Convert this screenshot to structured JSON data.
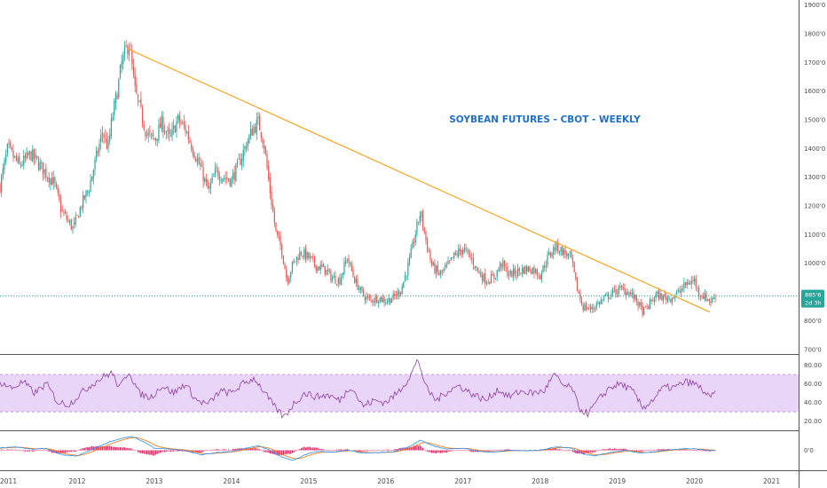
{
  "chart_data": {
    "type": "candlestick",
    "title": "SOYBEAN FUTURES - CBOT - WEEKLY",
    "timeframe": "Weekly",
    "colors": {
      "up": "#26a69a",
      "down": "#ef5350",
      "trendline": "#f5a623",
      "last_price_line": "#26a69a",
      "title": "#1f6fc9",
      "rsi_line": "#8e3fa0",
      "rsi_band": "#e9d5f7",
      "macd_line": "#2196f3",
      "signal_line": "#ff6d00",
      "histogram": "#e91e63"
    },
    "x_ticks": [
      "2011",
      "2012",
      "2013",
      "2014",
      "2015",
      "2016",
      "2017",
      "2018",
      "2019",
      "2020",
      "2021"
    ],
    "x_range": [
      2011.0,
      2021.35
    ],
    "price_panel": {
      "y_ticks": [
        "700'0",
        "800'0",
        "900'0",
        "1000'0",
        "1100'0",
        "1200'0",
        "1300'0",
        "1400'0",
        "1500'0",
        "1600'0",
        "1700'0",
        "1800'0",
        "1900'0"
      ],
      "ylim": [
        690,
        1905
      ],
      "last_price": "885'6",
      "countdown": "2d 3h",
      "last_price_value": 885.75,
      "trendline": {
        "from": [
          2012.65,
          1748
        ],
        "to": [
          2020.2,
          830
        ]
      },
      "closes_anchor": [
        [
          2011.0,
          1270
        ],
        [
          2011.1,
          1400
        ],
        [
          2011.25,
          1340
        ],
        [
          2011.4,
          1380
        ],
        [
          2011.55,
          1330
        ],
        [
          2011.7,
          1280
        ],
        [
          2011.8,
          1180
        ],
        [
          2011.95,
          1120
        ],
        [
          2012.05,
          1200
        ],
        [
          2012.15,
          1260
        ],
        [
          2012.25,
          1370
        ],
        [
          2012.33,
          1460
        ],
        [
          2012.4,
          1400
        ],
        [
          2012.45,
          1500
        ],
        [
          2012.52,
          1600
        ],
        [
          2012.58,
          1700
        ],
        [
          2012.67,
          1770
        ],
        [
          2012.75,
          1600
        ],
        [
          2012.82,
          1530
        ],
        [
          2012.9,
          1450
        ],
        [
          2013.0,
          1430
        ],
        [
          2013.1,
          1490
        ],
        [
          2013.2,
          1430
        ],
        [
          2013.3,
          1500
        ],
        [
          2013.4,
          1470
        ],
        [
          2013.5,
          1400
        ],
        [
          2013.6,
          1330
        ],
        [
          2013.7,
          1250
        ],
        [
          2013.8,
          1320
        ],
        [
          2013.9,
          1300
        ],
        [
          2014.0,
          1290
        ],
        [
          2014.1,
          1350
        ],
        [
          2014.2,
          1420
        ],
        [
          2014.28,
          1470
        ],
        [
          2014.35,
          1490
        ],
        [
          2014.42,
          1420
        ],
        [
          2014.5,
          1250
        ],
        [
          2014.58,
          1100
        ],
        [
          2014.65,
          1050
        ],
        [
          2014.72,
          940
        ],
        [
          2014.8,
          1000
        ],
        [
          2014.9,
          1040
        ],
        [
          2015.0,
          1020
        ],
        [
          2015.1,
          990
        ],
        [
          2015.2,
          980
        ],
        [
          2015.3,
          950
        ],
        [
          2015.4,
          940
        ],
        [
          2015.5,
          1020
        ],
        [
          2015.6,
          940
        ],
        [
          2015.7,
          890
        ],
        [
          2015.8,
          870
        ],
        [
          2015.9,
          880
        ],
        [
          2016.0,
          870
        ],
        [
          2016.1,
          880
        ],
        [
          2016.2,
          910
        ],
        [
          2016.3,
          1000
        ],
        [
          2016.38,
          1100
        ],
        [
          2016.45,
          1180
        ],
        [
          2016.52,
          1080
        ],
        [
          2016.6,
          990
        ],
        [
          2016.7,
          960
        ],
        [
          2016.8,
          990
        ],
        [
          2016.9,
          1030
        ],
        [
          2017.0,
          1050
        ],
        [
          2017.1,
          1020
        ],
        [
          2017.2,
          970
        ],
        [
          2017.3,
          940
        ],
        [
          2017.4,
          950
        ],
        [
          2017.5,
          1000
        ],
        [
          2017.6,
          960
        ],
        [
          2017.7,
          970
        ],
        [
          2017.8,
          980
        ],
        [
          2017.9,
          980
        ],
        [
          2018.0,
          960
        ],
        [
          2018.1,
          1020
        ],
        [
          2018.2,
          1060
        ],
        [
          2018.3,
          1040
        ],
        [
          2018.4,
          1020
        ],
        [
          2018.47,
          920
        ],
        [
          2018.55,
          850
        ],
        [
          2018.65,
          840
        ],
        [
          2018.75,
          860
        ],
        [
          2018.85,
          880
        ],
        [
          2018.95,
          900
        ],
        [
          2019.05,
          910
        ],
        [
          2019.15,
          900
        ],
        [
          2019.25,
          870
        ],
        [
          2019.33,
          830
        ],
        [
          2019.4,
          850
        ],
        [
          2019.5,
          890
        ],
        [
          2019.6,
          880
        ],
        [
          2019.7,
          880
        ],
        [
          2019.8,
          900
        ],
        [
          2019.9,
          930
        ],
        [
          2020.0,
          940
        ],
        [
          2020.05,
          900
        ],
        [
          2020.15,
          880
        ],
        [
          2020.22,
          866
        ],
        [
          2020.26,
          886
        ]
      ]
    },
    "rsi_panel": {
      "y_ticks": [
        "20.00",
        "40.00",
        "60.00",
        "80.00"
      ],
      "ylim": [
        12,
        90
      ],
      "band": [
        30,
        70
      ],
      "anchors": [
        [
          2011.0,
          62
        ],
        [
          2011.15,
          55
        ],
        [
          2011.3,
          62
        ],
        [
          2011.45,
          50
        ],
        [
          2011.6,
          60
        ],
        [
          2011.75,
          40
        ],
        [
          2011.9,
          38
        ],
        [
          2012.05,
          50
        ],
        [
          2012.2,
          60
        ],
        [
          2012.35,
          68
        ],
        [
          2012.45,
          72
        ],
        [
          2012.55,
          55
        ],
        [
          2012.67,
          74
        ],
        [
          2012.8,
          50
        ],
        [
          2012.95,
          45
        ],
        [
          2013.1,
          58
        ],
        [
          2013.25,
          50
        ],
        [
          2013.4,
          60
        ],
        [
          2013.55,
          42
        ],
        [
          2013.7,
          38
        ],
        [
          2013.85,
          52
        ],
        [
          2014.0,
          50
        ],
        [
          2014.15,
          60
        ],
        [
          2014.3,
          66
        ],
        [
          2014.45,
          48
        ],
        [
          2014.55,
          36
        ],
        [
          2014.68,
          24
        ],
        [
          2014.8,
          38
        ],
        [
          2014.95,
          50
        ],
        [
          2015.1,
          46
        ],
        [
          2015.25,
          48
        ],
        [
          2015.4,
          42
        ],
        [
          2015.55,
          58
        ],
        [
          2015.7,
          36
        ],
        [
          2015.85,
          42
        ],
        [
          2016.0,
          40
        ],
        [
          2016.15,
          50
        ],
        [
          2016.3,
          66
        ],
        [
          2016.42,
          86
        ],
        [
          2016.52,
          56
        ],
        [
          2016.65,
          42
        ],
        [
          2016.8,
          52
        ],
        [
          2016.95,
          58
        ],
        [
          2017.1,
          50
        ],
        [
          2017.3,
          42
        ],
        [
          2017.45,
          54
        ],
        [
          2017.6,
          46
        ],
        [
          2017.75,
          52
        ],
        [
          2017.9,
          50
        ],
        [
          2018.05,
          52
        ],
        [
          2018.18,
          70
        ],
        [
          2018.3,
          58
        ],
        [
          2018.42,
          55
        ],
        [
          2018.5,
          34
        ],
        [
          2018.62,
          28
        ],
        [
          2018.75,
          42
        ],
        [
          2018.9,
          56
        ],
        [
          2019.05,
          60
        ],
        [
          2019.2,
          52
        ],
        [
          2019.33,
          34
        ],
        [
          2019.45,
          42
        ],
        [
          2019.6,
          56
        ],
        [
          2019.75,
          56
        ],
        [
          2019.88,
          62
        ],
        [
          2020.0,
          60
        ],
        [
          2020.1,
          54
        ],
        [
          2020.2,
          44
        ],
        [
          2020.26,
          50
        ]
      ]
    },
    "macd_panel": {
      "y_ticks": [
        "0'0"
      ],
      "ylim": [
        -80,
        80
      ],
      "macd_anchors": [
        [
          2011.0,
          10
        ],
        [
          2011.2,
          15
        ],
        [
          2011.4,
          5
        ],
        [
          2011.6,
          8
        ],
        [
          2011.8,
          -20
        ],
        [
          2012.0,
          -25
        ],
        [
          2012.2,
          5
        ],
        [
          2012.4,
          35
        ],
        [
          2012.6,
          55
        ],
        [
          2012.72,
          60
        ],
        [
          2012.85,
          40
        ],
        [
          2013.0,
          10
        ],
        [
          2013.2,
          5
        ],
        [
          2013.4,
          0
        ],
        [
          2013.6,
          -20
        ],
        [
          2013.8,
          -10
        ],
        [
          2014.0,
          -5
        ],
        [
          2014.2,
          10
        ],
        [
          2014.35,
          20
        ],
        [
          2014.5,
          0
        ],
        [
          2014.65,
          -30
        ],
        [
          2014.8,
          -45
        ],
        [
          2014.95,
          -20
        ],
        [
          2015.1,
          -5
        ],
        [
          2015.3,
          -8
        ],
        [
          2015.5,
          0
        ],
        [
          2015.7,
          -12
        ],
        [
          2015.9,
          -10
        ],
        [
          2016.1,
          -5
        ],
        [
          2016.3,
          15
        ],
        [
          2016.45,
          45
        ],
        [
          2016.6,
          20
        ],
        [
          2016.8,
          5
        ],
        [
          2017.0,
          10
        ],
        [
          2017.2,
          -5
        ],
        [
          2017.4,
          -8
        ],
        [
          2017.6,
          0
        ],
        [
          2017.8,
          -2
        ],
        [
          2018.0,
          0
        ],
        [
          2018.2,
          15
        ],
        [
          2018.4,
          10
        ],
        [
          2018.55,
          -15
        ],
        [
          2018.7,
          -25
        ],
        [
          2018.9,
          -10
        ],
        [
          2019.1,
          0
        ],
        [
          2019.3,
          -12
        ],
        [
          2019.5,
          -5
        ],
        [
          2019.7,
          2
        ],
        [
          2019.9,
          8
        ],
        [
          2020.05,
          5
        ],
        [
          2020.26,
          -2
        ]
      ]
    }
  }
}
